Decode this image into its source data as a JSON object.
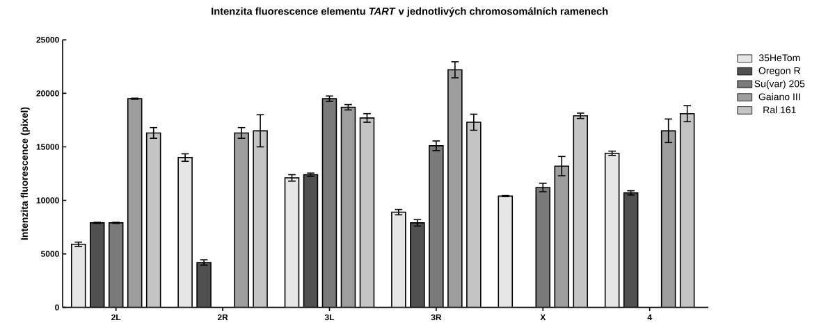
{
  "chart_data": {
    "type": "bar",
    "title": "Intenzita fluorescence elementu *TART* v jednotlivých chromosomálních ramenech",
    "ylabel": "Intenzita fluorescence (pixel)",
    "categories": [
      "2L",
      "2R",
      "3L",
      "3R",
      "X",
      "4"
    ],
    "ylim": [
      0,
      25000
    ],
    "yticks": [
      0,
      5000,
      10000,
      15000,
      20000,
      25000
    ],
    "legend": "top right",
    "series": [
      {
        "name": "35HeTom",
        "color": "#e6e6e6",
        "values": [
          5900,
          14000,
          12100,
          8900,
          10400,
          14400
        ],
        "errors": [
          200,
          350,
          300,
          250,
          50,
          200
        ]
      },
      {
        "name": "Oregon R",
        "color": "#505050",
        "values": [
          7900,
          4200,
          12400,
          7900,
          null,
          10700
        ],
        "errors": [
          50,
          250,
          150,
          300,
          null,
          200
        ]
      },
      {
        "name": "Su(var) 205",
        "color": "#7a7a7a",
        "values": [
          7900,
          null,
          19500,
          15100,
          11200,
          null
        ],
        "errors": [
          50,
          null,
          250,
          450,
          400,
          null
        ]
      },
      {
        "name": "Gaiano III",
        "color": "#9e9e9e",
        "values": [
          19500,
          16300,
          18700,
          22200,
          13200,
          16500
        ],
        "errors": [
          50,
          500,
          250,
          750,
          900,
          1100
        ]
      },
      {
        "name": "Ral 161",
        "color": "#c4c4c4",
        "values": [
          16300,
          16500,
          17700,
          17300,
          17900,
          18100
        ],
        "errors": [
          500,
          1500,
          400,
          750,
          250,
          750
        ]
      }
    ]
  }
}
